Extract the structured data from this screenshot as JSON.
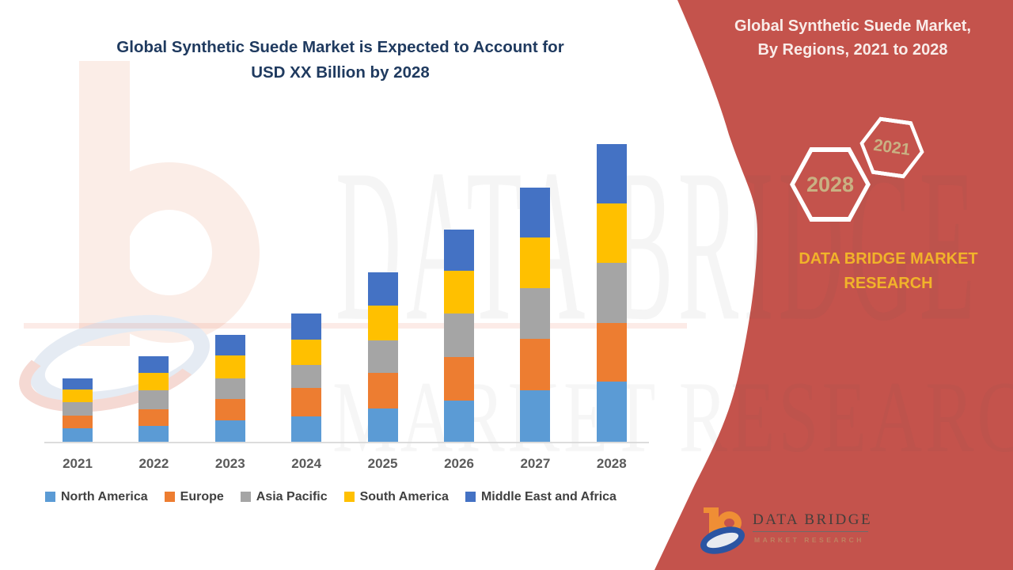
{
  "title": {
    "line1": "Global Synthetic Suede Market is Expected to Account for",
    "line2": "USD XX Billion by 2028"
  },
  "panel": {
    "title_line1": "Global Synthetic Suede Market,",
    "title_line2": "By Regions, 2021 to 2028",
    "hex_back_label": "2028",
    "hex_front_label": "2021",
    "brand_line1": "DATA BRIDGE MARKET",
    "brand_line2": "RESEARCH",
    "panel_red": "#C4534C",
    "brand_yellow": "#F1B32A",
    "hex_text_color": "#C9B183"
  },
  "watermark": {
    "line1": "DATA BRIDGE",
    "line2": "MARKET RESEARCH"
  },
  "footer_logo": {
    "name": "DATA BRIDGE",
    "sub": "MARKET RESEARCH"
  },
  "chart_data": {
    "type": "bar",
    "stacked": true,
    "title": "Global Synthetic Suede Market is Expected to Account for USD XX Billion by 2028",
    "xlabel": "",
    "ylabel": "",
    "note": "No numeric y-axis shown (values are 'USD XX Billion'); series values below are relative units estimated from bar pixel heights",
    "grid": false,
    "legend_position": "bottom",
    "ylim": [
      0,
      400
    ],
    "categories": [
      "2021",
      "2022",
      "2023",
      "2024",
      "2025",
      "2026",
      "2027",
      "2028"
    ],
    "series": [
      {
        "name": "North America",
        "color": "#5B9BD5",
        "values": [
          18,
          21,
          28,
          33,
          43,
          53,
          66,
          77
        ]
      },
      {
        "name": "Europe",
        "color": "#ED7D31",
        "values": [
          16,
          21,
          27,
          36,
          45,
          55,
          65,
          74
        ]
      },
      {
        "name": "Asia Pacific",
        "color": "#A5A5A5",
        "values": [
          17,
          24,
          26,
          29,
          41,
          55,
          64,
          76
        ]
      },
      {
        "name": "South America",
        "color": "#FFC000",
        "values": [
          16,
          22,
          29,
          32,
          44,
          54,
          64,
          75
        ]
      },
      {
        "name": "Middle East and Africa",
        "color": "#4472C4",
        "values": [
          14,
          21,
          26,
          33,
          42,
          52,
          63,
          75
        ]
      }
    ],
    "totals": [
      81,
      109,
      136,
      163,
      215,
      269,
      322,
      377
    ]
  }
}
